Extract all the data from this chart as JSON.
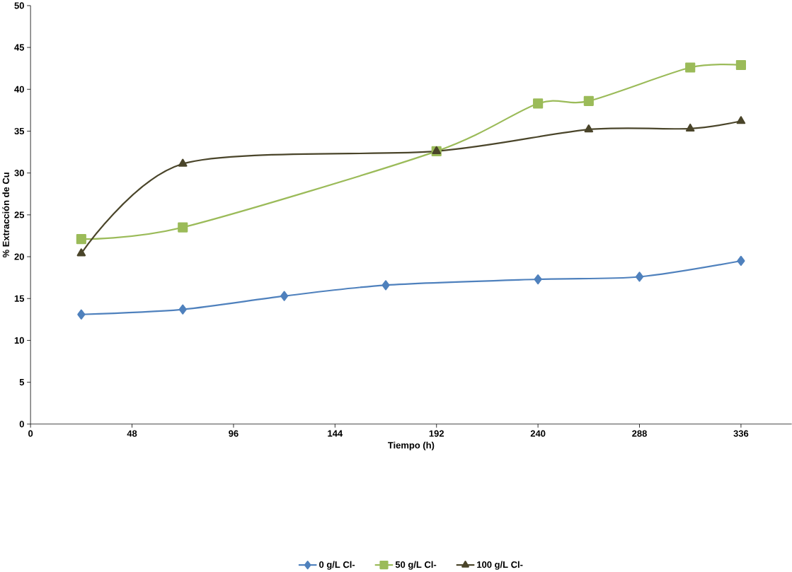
{
  "chart_data": {
    "type": "line",
    "xlabel": "Tiempo (h)",
    "ylabel": "% Extracción de Cu",
    "xlim": [
      0,
      360
    ],
    "xticks": [
      0,
      48,
      96,
      144,
      192,
      240,
      288,
      336
    ],
    "ylim": [
      0,
      50
    ],
    "yticks": [
      0,
      5,
      10,
      15,
      20,
      25,
      30,
      35,
      40,
      45,
      50
    ],
    "grid": false,
    "legend": "bottom",
    "series": [
      {
        "name": "0 g/L Cl-",
        "color": "#4f81bd",
        "marker": "diamond",
        "x": [
          24,
          72,
          120,
          168,
          240,
          288,
          336
        ],
        "values": [
          13.1,
          13.7,
          15.3,
          16.6,
          17.3,
          17.6,
          19.5
        ]
      },
      {
        "name": "50 g/L Cl-",
        "color": "#9bbb59",
        "marker": "square",
        "x": [
          24,
          72,
          192,
          240,
          264,
          312,
          336
        ],
        "values": [
          22.1,
          23.5,
          32.6,
          38.3,
          38.6,
          42.6,
          42.9
        ]
      },
      {
        "name": "100 g/L Cl-",
        "color": "#4a452a",
        "marker": "triangle",
        "x": [
          24,
          72,
          192,
          264,
          312,
          336
        ],
        "values": [
          20.4,
          31.1,
          32.6,
          35.2,
          35.3,
          36.2
        ]
      }
    ]
  }
}
